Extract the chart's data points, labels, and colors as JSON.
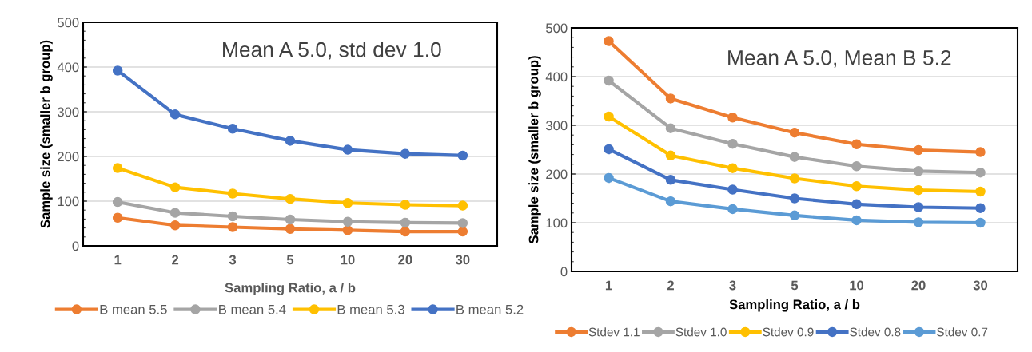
{
  "chart_data": [
    {
      "type": "line",
      "title": "Mean A 5.0, std dev 1.0",
      "xlabel": "Sampling Ratio, a / b",
      "ylabel": "Sample size (smaller b group)",
      "categories": [
        "1",
        "2",
        "3",
        "5",
        "10",
        "20",
        "30"
      ],
      "ylim": [
        0,
        500
      ],
      "yticks": [
        0,
        100,
        200,
        300,
        400,
        500
      ],
      "grid": "y",
      "legend": "bottom",
      "marker": "circle",
      "line_style": "solid",
      "series": [
        {
          "name": "B mean 5.5",
          "color": "#ed7d31",
          "values": [
            63,
            46,
            42,
            38,
            35,
            32,
            32
          ]
        },
        {
          "name": "B mean 5.4",
          "color": "#a5a5a5",
          "values": [
            98,
            74,
            66,
            59,
            54,
            52,
            51
          ]
        },
        {
          "name": "B mean 5.3",
          "color": "#ffc000",
          "values": [
            174,
            131,
            117,
            105,
            96,
            92,
            90
          ]
        },
        {
          "name": "B mean 5.2",
          "color": "#4472c4",
          "values": [
            392,
            294,
            262,
            235,
            215,
            206,
            202
          ]
        }
      ]
    },
    {
      "type": "line",
      "title": "Mean A 5.0, Mean B 5.2",
      "xlabel": "Sampling Ratio, a / b",
      "ylabel": "Sample size (smaller b group)",
      "categories": [
        "1",
        "2",
        "3",
        "5",
        "10",
        "20",
        "30"
      ],
      "ylim": [
        0,
        500
      ],
      "yticks": [
        0,
        100,
        200,
        300,
        400,
        500
      ],
      "grid": "y",
      "legend": "bottom",
      "marker": "circle",
      "line_style": "solid",
      "series": [
        {
          "name": "Stdev 1.1",
          "color": "#ed7d31",
          "values": [
            473,
            355,
            316,
            285,
            261,
            249,
            245
          ]
        },
        {
          "name": "Stdev 1.0",
          "color": "#a5a5a5",
          "values": [
            392,
            294,
            262,
            235,
            216,
            206,
            203
          ]
        },
        {
          "name": "Stdev 0.9",
          "color": "#ffc000",
          "values": [
            318,
            238,
            212,
            191,
            175,
            167,
            164
          ]
        },
        {
          "name": "Stdev 0.8",
          "color": "#4472c4",
          "values": [
            251,
            188,
            168,
            150,
            138,
            132,
            130
          ]
        },
        {
          "name": "Stdev 0.7",
          "color": "#5b9bd5",
          "values": [
            192,
            144,
            128,
            115,
            105,
            101,
            100
          ]
        }
      ]
    }
  ]
}
